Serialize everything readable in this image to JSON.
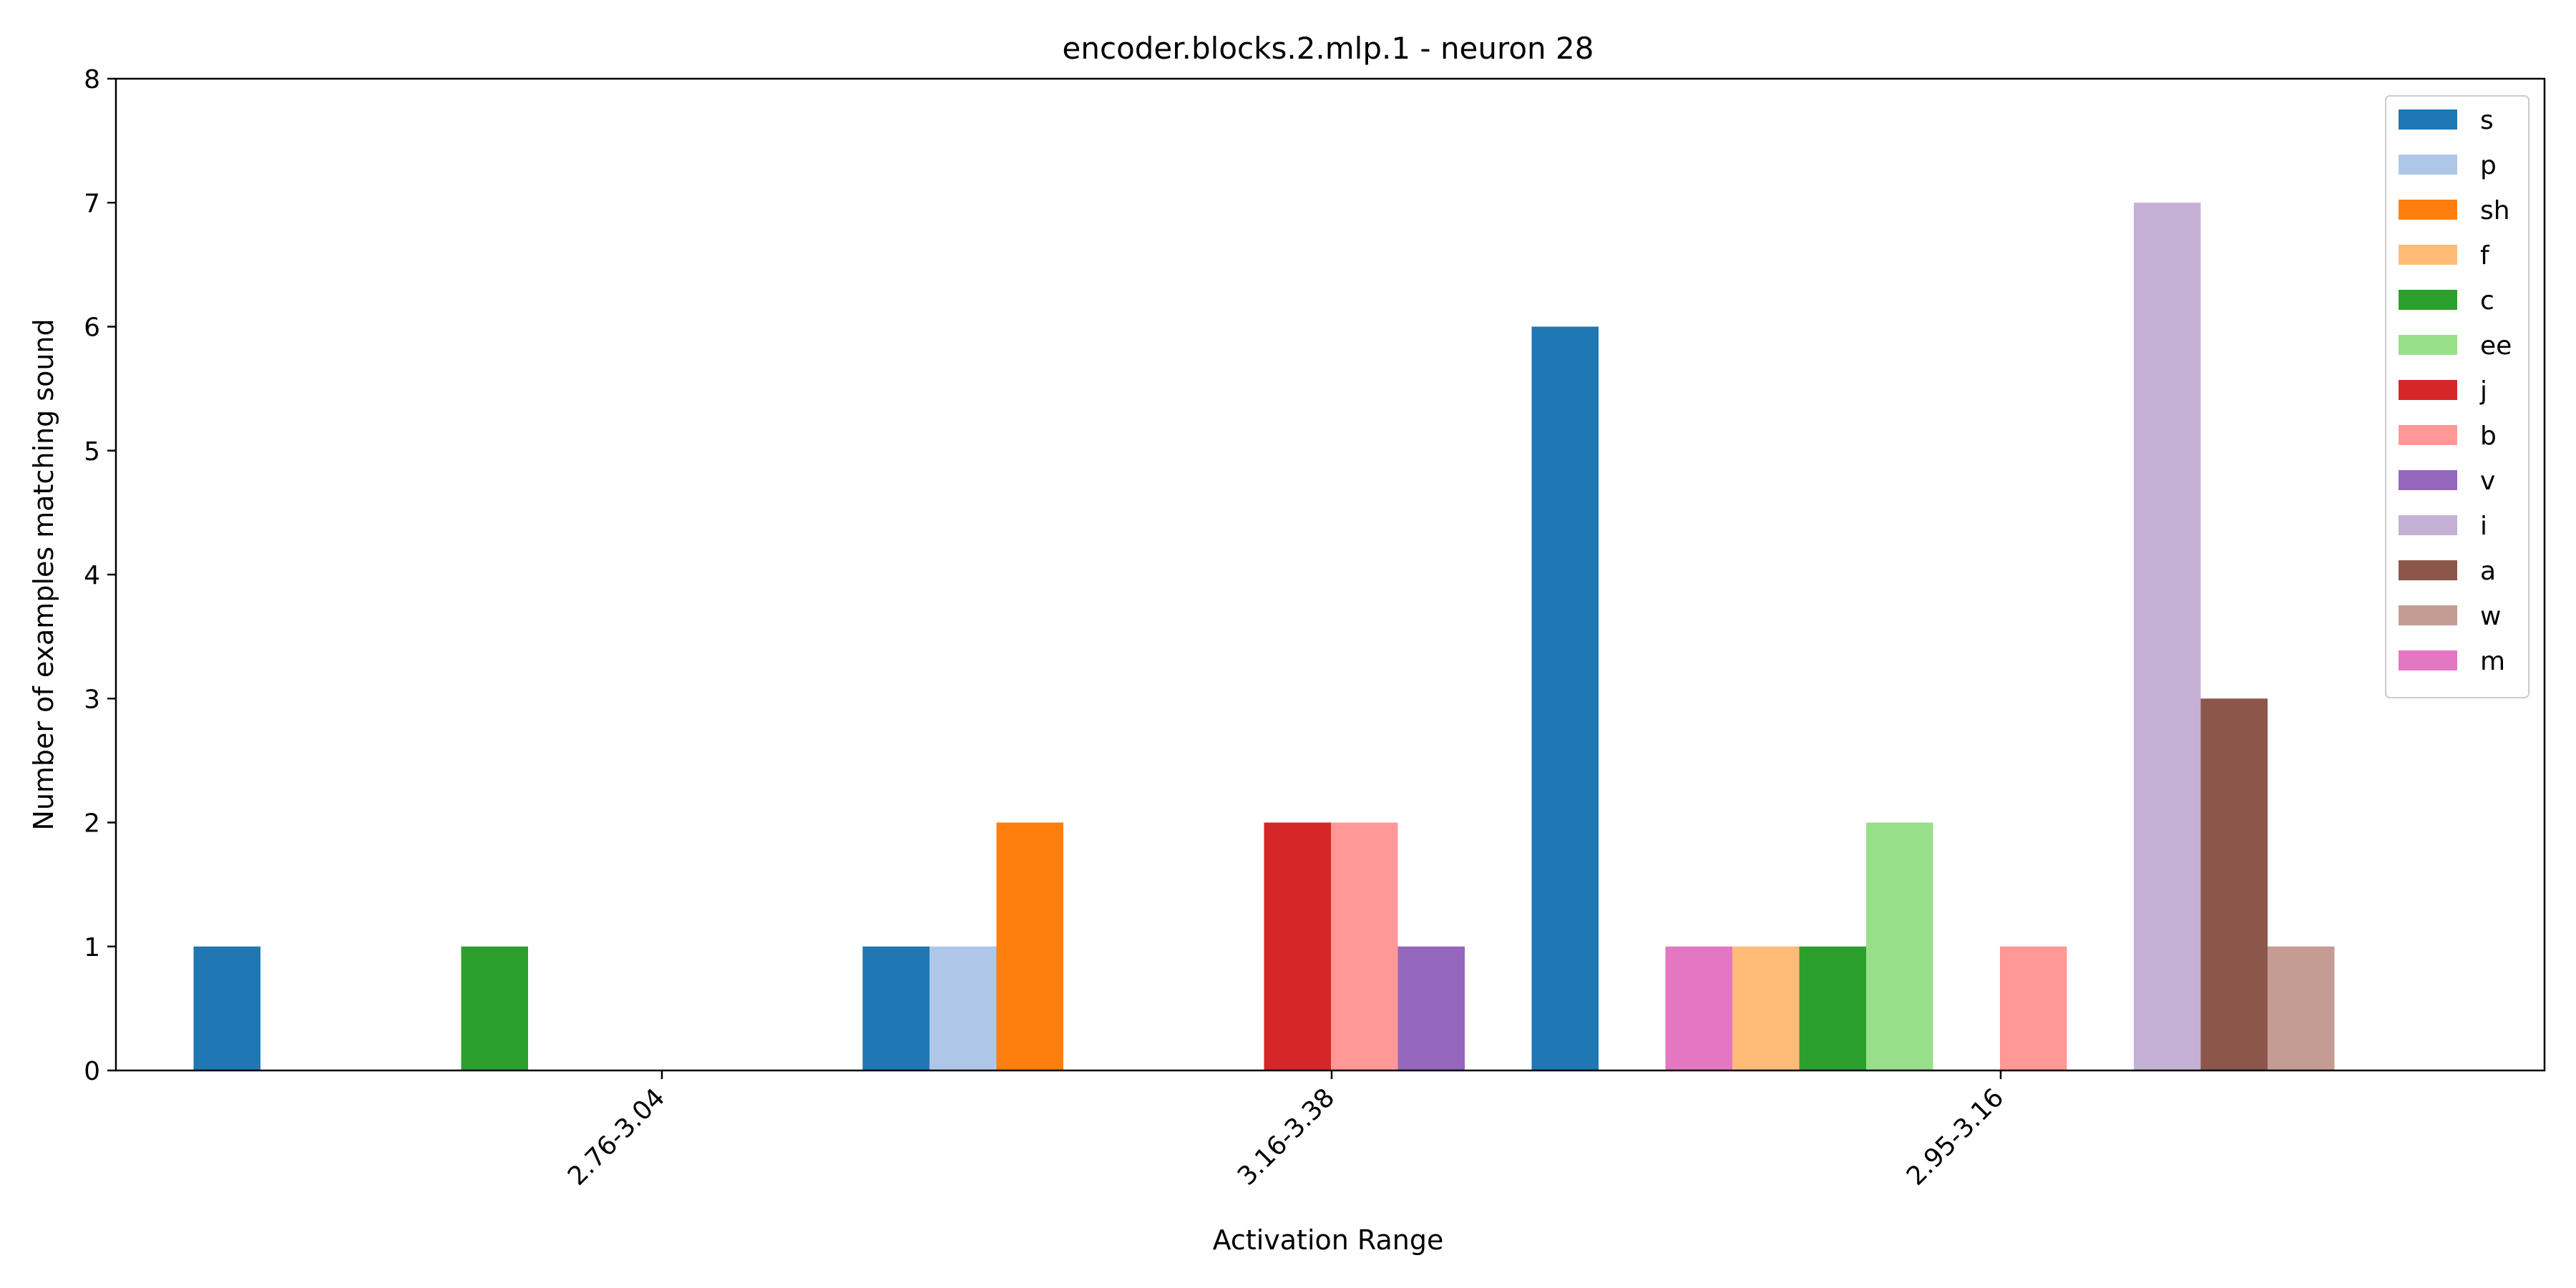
{
  "chart_data": {
    "type": "bar",
    "title": "encoder.blocks.2.mlp.1 - neuron 28",
    "xlabel": "Activation Range",
    "ylabel": "Number of examples matching sound",
    "ylim": [
      0,
      8
    ],
    "yticks": [
      "0",
      "1",
      "2",
      "3",
      "4",
      "5",
      "6",
      "7",
      "8"
    ],
    "grid": false,
    "legend_position": "top-right",
    "categories": [
      "2.76-3.04",
      "3.16-3.38",
      "2.95-3.16"
    ],
    "series": [
      {
        "name": "s",
        "color": "#1f77b4",
        "values": [
          1,
          1,
          6
        ]
      },
      {
        "name": "p",
        "color": "#aec7e8",
        "values": [
          0,
          1,
          0
        ]
      },
      {
        "name": "sh",
        "color": "#ff7f0e",
        "values": [
          0,
          2,
          0
        ]
      },
      {
        "name": "f",
        "color": "#ffbb78",
        "values": [
          0,
          0,
          1
        ]
      },
      {
        "name": "c",
        "color": "#2ca02c",
        "values": [
          1,
          0,
          1
        ]
      },
      {
        "name": "ee",
        "color": "#98df8a",
        "values": [
          0,
          0,
          2
        ]
      },
      {
        "name": "j",
        "color": "#d62728",
        "values": [
          0,
          2,
          0
        ]
      },
      {
        "name": "b",
        "color": "#ff9896",
        "values": [
          0,
          2,
          1
        ]
      },
      {
        "name": "v",
        "color": "#9467bd",
        "values": [
          0,
          1,
          0
        ]
      },
      {
        "name": "i",
        "color": "#c5b0d5",
        "values": [
          0,
          0,
          7
        ]
      },
      {
        "name": "a",
        "color": "#8c564b",
        "values": [
          0,
          0,
          3
        ]
      },
      {
        "name": "w",
        "color": "#c49c94",
        "values": [
          0,
          0,
          1
        ]
      },
      {
        "name": "m",
        "color": "#e377c2",
        "values": [
          0,
          0,
          1
        ]
      }
    ],
    "bars": [
      {
        "series": "s",
        "value": 1,
        "slot": -6.5
      },
      {
        "series": "c",
        "value": 1,
        "slot": -2.5
      },
      {
        "series": "s",
        "value": 1,
        "slot": 3.5
      },
      {
        "series": "p",
        "value": 1,
        "slot": 4.5
      },
      {
        "series": "sh",
        "value": 2,
        "slot": 5.5
      },
      {
        "series": "j",
        "value": 2,
        "slot": 9.5
      },
      {
        "series": "b",
        "value": 2,
        "slot": 10.5
      },
      {
        "series": "v",
        "value": 1,
        "slot": 11.5
      },
      {
        "series": "s",
        "value": 6,
        "slot": 13.5
      },
      {
        "series": "m",
        "value": 1,
        "slot": 15.5
      },
      {
        "series": "f",
        "value": 1,
        "slot": 16.5
      },
      {
        "series": "c",
        "value": 1,
        "slot": 17.5
      },
      {
        "series": "ee",
        "value": 2,
        "slot": 18.5
      },
      {
        "series": "b",
        "value": 1,
        "slot": 20.5
      },
      {
        "series": "i",
        "value": 7,
        "slot": 22.5
      },
      {
        "series": "a",
        "value": 3,
        "slot": 23.5
      },
      {
        "series": "w",
        "value": 1,
        "slot": 24.5
      }
    ]
  }
}
